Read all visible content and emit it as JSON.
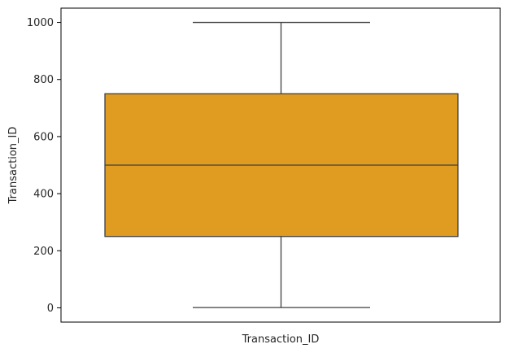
{
  "chart_data": {
    "type": "box",
    "title": "",
    "xlabel": "Transaction_ID",
    "ylabel": "Transaction_ID",
    "ylim": [
      -50,
      1050
    ],
    "yticks": [
      0,
      200,
      400,
      600,
      800,
      1000
    ],
    "grid": false,
    "color": "#e09c20",
    "series": [
      {
        "min": 1,
        "q1": 250,
        "median": 500,
        "q3": 750,
        "max": 1000
      }
    ]
  }
}
